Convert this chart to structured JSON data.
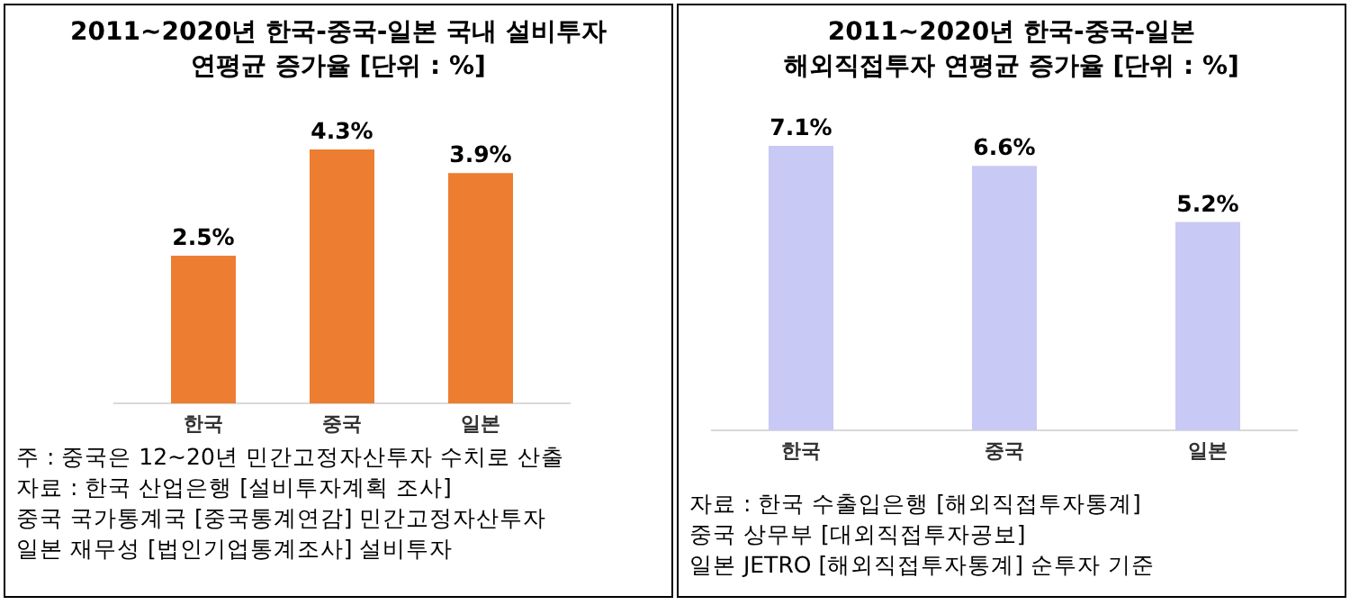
{
  "chart_data": [
    {
      "type": "bar",
      "title": "2011~2020년 한국-중국-일본 국내 설비투자",
      "subtitle": "연평균 증가율 [단위 : %]",
      "categories": [
        "한국",
        "중국",
        "일본"
      ],
      "values": [
        2.5,
        4.3,
        3.9
      ],
      "color": "#ed7d31",
      "data_labels": true,
      "value_labels": [
        "2.5%",
        "4.3%",
        "3.9%"
      ],
      "annotations": [
        "주 : 중국은 12~20년 민간고정자산투자 수치로 산출",
        "자료 : 한국 산업은행 [설비투자계획 조사]",
        "중국 국가통계국 [중국통계연감] 민간고정자산투자",
        "일본 재무성 [법인기업통계조사] 설비투자"
      ]
    },
    {
      "type": "bar",
      "title": "2011~2020년 한국-중국-일본",
      "subtitle": "해외직접투자 연평균 증가율 [단위 : %]",
      "categories": [
        "한국",
        "중국",
        "일본"
      ],
      "values": [
        7.1,
        6.6,
        5.2
      ],
      "color": "#c9c9f5",
      "data_labels": true,
      "value_labels": [
        "7.1%",
        "6.6%",
        "5.2%"
      ],
      "annotations": [
        "자료 : 한국 수출입은행 [해외직접투자통계]",
        "중국 상무부 [대외직접투자공보]",
        "일본 JETRO [해외직접투자통계] 순투자 기준"
      ]
    }
  ]
}
